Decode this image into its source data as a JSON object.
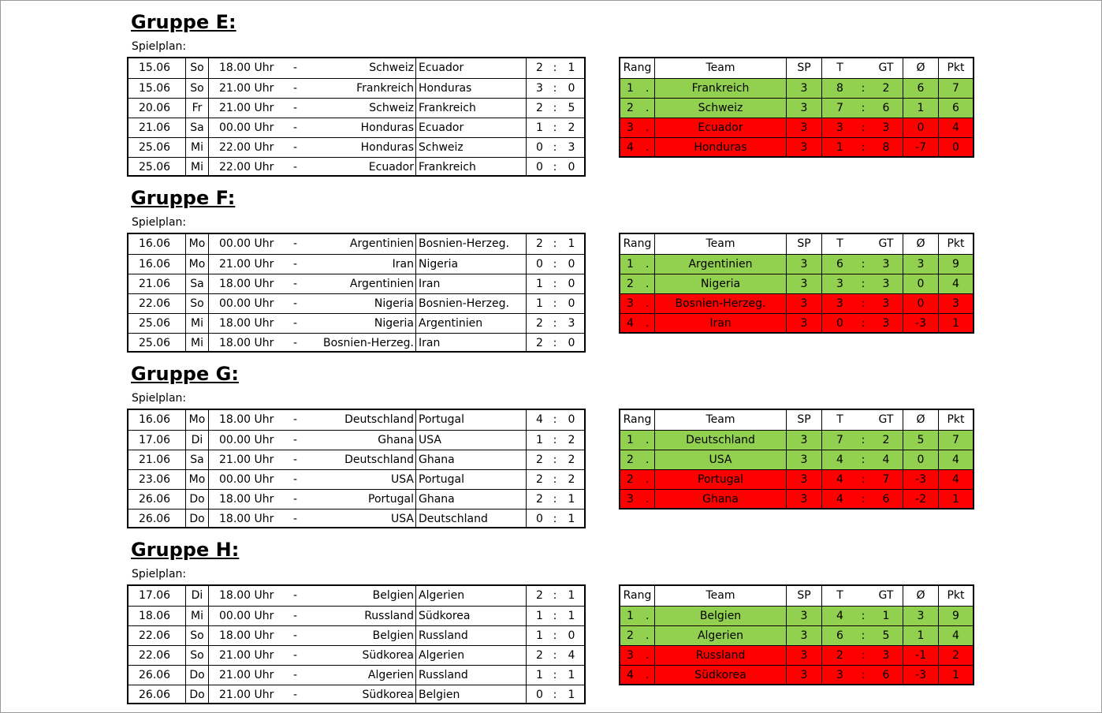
{
  "sep": "-",
  "colon": ":",
  "dot": ".",
  "standings_header": [
    "Rang",
    "Team",
    "SP",
    "T",
    "GT",
    "Ø",
    "Pkt"
  ],
  "groups": [
    {
      "title": "Gruppe E:",
      "subtitle": "Spielplan:",
      "matches": [
        {
          "date": "15.06",
          "day": "So",
          "time": "18.00 Uhr",
          "home": "Schweiz",
          "away": "Ecuador",
          "g1": 2,
          "g2": 1
        },
        {
          "date": "15.06",
          "day": "So",
          "time": "21.00 Uhr",
          "home": "Frankreich",
          "away": "Honduras",
          "g1": 3,
          "g2": 0
        },
        {
          "date": "20.06",
          "day": "Fr",
          "time": "21.00 Uhr",
          "home": "Schweiz",
          "away": "Frankreich",
          "g1": 2,
          "g2": 5
        },
        {
          "date": "21.06",
          "day": "Sa",
          "time": "00.00 Uhr",
          "home": "Honduras",
          "away": "Ecuador",
          "g1": 1,
          "g2": 2
        },
        {
          "date": "25.06",
          "day": "Mi",
          "time": "22.00 Uhr",
          "home": "Honduras",
          "away": "Schweiz",
          "g1": 0,
          "g2": 3
        },
        {
          "date": "25.06",
          "day": "Mi",
          "time": "22.00 Uhr",
          "home": "Ecuador",
          "away": "Frankreich",
          "g1": 0,
          "g2": 0
        }
      ],
      "standings": [
        {
          "rank": 1,
          "team": "Frankreich",
          "sp": 3,
          "t": 8,
          "gt": 2,
          "diff": 6,
          "pkt": 7,
          "fill": "#92d050"
        },
        {
          "rank": 2,
          "team": "Schweiz",
          "sp": 3,
          "t": 7,
          "gt": 6,
          "diff": 1,
          "pkt": 6,
          "fill": "#92d050"
        },
        {
          "rank": 3,
          "team": "Ecuador",
          "sp": 3,
          "t": 3,
          "gt": 3,
          "diff": 0,
          "pkt": 4,
          "fill": "#ff0000"
        },
        {
          "rank": 4,
          "team": "Honduras",
          "sp": 3,
          "t": 1,
          "gt": 8,
          "diff": -7,
          "pkt": 0,
          "fill": "#ff0000"
        }
      ]
    },
    {
      "title": "Gruppe F:",
      "subtitle": "Spielplan:",
      "matches": [
        {
          "date": "16.06",
          "day": "Mo",
          "time": "00.00 Uhr",
          "home": "Argentinien",
          "away": "Bosnien-Herzeg.",
          "g1": 2,
          "g2": 1
        },
        {
          "date": "16.06",
          "day": "Mo",
          "time": "21.00 Uhr",
          "home": "Iran",
          "away": "Nigeria",
          "g1": 0,
          "g2": 0
        },
        {
          "date": "21.06",
          "day": "Sa",
          "time": "18.00 Uhr",
          "home": "Argentinien",
          "away": "Iran",
          "g1": 1,
          "g2": 0
        },
        {
          "date": "22.06",
          "day": "So",
          "time": "00.00 Uhr",
          "home": "Nigeria",
          "away": "Bosnien-Herzeg.",
          "g1": 1,
          "g2": 0
        },
        {
          "date": "25.06",
          "day": "Mi",
          "time": "18.00 Uhr",
          "home": "Nigeria",
          "away": "Argentinien",
          "g1": 2,
          "g2": 3
        },
        {
          "date": "25.06",
          "day": "Mi",
          "time": "18.00 Uhr",
          "home": "Bosnien-Herzeg.",
          "away": "Iran",
          "g1": 2,
          "g2": 0
        }
      ],
      "standings": [
        {
          "rank": 1,
          "team": "Argentinien",
          "sp": 3,
          "t": 6,
          "gt": 3,
          "diff": 3,
          "pkt": 9,
          "fill": "#92d050"
        },
        {
          "rank": 2,
          "team": "Nigeria",
          "sp": 3,
          "t": 3,
          "gt": 3,
          "diff": 0,
          "pkt": 4,
          "fill": "#92d050"
        },
        {
          "rank": 3,
          "team": "Bosnien-Herzeg.",
          "sp": 3,
          "t": 3,
          "gt": 3,
          "diff": 0,
          "pkt": 3,
          "fill": "#ff0000"
        },
        {
          "rank": 4,
          "team": "Iran",
          "sp": 3,
          "t": 0,
          "gt": 3,
          "diff": -3,
          "pkt": 1,
          "fill": "#ff0000"
        }
      ]
    },
    {
      "title": "Gruppe G:",
      "subtitle": "Spielplan:",
      "matches": [
        {
          "date": "16.06",
          "day": "Mo",
          "time": "18.00 Uhr",
          "home": "Deutschland",
          "away": "Portugal",
          "g1": 4,
          "g2": 0
        },
        {
          "date": "17.06",
          "day": "Di",
          "time": "00.00 Uhr",
          "home": "Ghana",
          "away": "USA",
          "g1": 1,
          "g2": 2
        },
        {
          "date": "21.06",
          "day": "Sa",
          "time": "21.00 Uhr",
          "home": "Deutschland",
          "away": "Ghana",
          "g1": 2,
          "g2": 2
        },
        {
          "date": "23.06",
          "day": "Mo",
          "time": "00.00 Uhr",
          "home": "USA",
          "away": "Portugal",
          "g1": 2,
          "g2": 2
        },
        {
          "date": "26.06",
          "day": "Do",
          "time": "18.00 Uhr",
          "home": "Portugal",
          "away": "Ghana",
          "g1": 2,
          "g2": 1
        },
        {
          "date": "26.06",
          "day": "Do",
          "time": "18.00 Uhr",
          "home": "USA",
          "away": "Deutschland",
          "g1": 0,
          "g2": 1
        }
      ],
      "standings": [
        {
          "rank": 1,
          "team": "Deutschland",
          "sp": 3,
          "t": 7,
          "gt": 2,
          "diff": 5,
          "pkt": 7,
          "fill": "#92d050"
        },
        {
          "rank": 2,
          "team": "USA",
          "sp": 3,
          "t": 4,
          "gt": 4,
          "diff": 0,
          "pkt": 4,
          "fill": "#92d050"
        },
        {
          "rank": 2,
          "team": "Portugal",
          "sp": 3,
          "t": 4,
          "gt": 7,
          "diff": -3,
          "pkt": 4,
          "fill": "#ff0000"
        },
        {
          "rank": 3,
          "team": "Ghana",
          "sp": 3,
          "t": 4,
          "gt": 6,
          "diff": -2,
          "pkt": 1,
          "fill": "#ff0000"
        }
      ]
    },
    {
      "title": "Gruppe H:",
      "subtitle": "Spielplan:",
      "matches": [
        {
          "date": "17.06",
          "day": "Di",
          "time": "18.00 Uhr",
          "home": "Belgien",
          "away": "Algerien",
          "g1": 2,
          "g2": 1
        },
        {
          "date": "18.06",
          "day": "Mi",
          "time": "00.00 Uhr",
          "home": "Russland",
          "away": "Südkorea",
          "g1": 1,
          "g2": 1
        },
        {
          "date": "22.06",
          "day": "So",
          "time": "18.00 Uhr",
          "home": "Belgien",
          "away": "Russland",
          "g1": 1,
          "g2": 0
        },
        {
          "date": "22.06",
          "day": "So",
          "time": "21.00 Uhr",
          "home": "Südkorea",
          "away": "Algerien",
          "g1": 2,
          "g2": 4
        },
        {
          "date": "26.06",
          "day": "Do",
          "time": "21.00 Uhr",
          "home": "Algerien",
          "away": "Russland",
          "g1": 1,
          "g2": 1
        },
        {
          "date": "26.06",
          "day": "Do",
          "time": "21.00 Uhr",
          "home": "Südkorea",
          "away": "Belgien",
          "g1": 0,
          "g2": 1
        }
      ],
      "standings": [
        {
          "rank": 1,
          "team": "Belgien",
          "sp": 3,
          "t": 4,
          "gt": 1,
          "diff": 3,
          "pkt": 9,
          "fill": "#92d050"
        },
        {
          "rank": 2,
          "team": "Algerien",
          "sp": 3,
          "t": 6,
          "gt": 5,
          "diff": 1,
          "pkt": 4,
          "fill": "#92d050"
        },
        {
          "rank": 3,
          "team": "Russland",
          "sp": 3,
          "t": 2,
          "gt": 3,
          "diff": -1,
          "pkt": 2,
          "fill": "#ff0000"
        },
        {
          "rank": 4,
          "team": "Südkorea",
          "sp": 3,
          "t": 3,
          "gt": 6,
          "diff": -3,
          "pkt": 1,
          "fill": "#ff0000"
        }
      ]
    }
  ]
}
